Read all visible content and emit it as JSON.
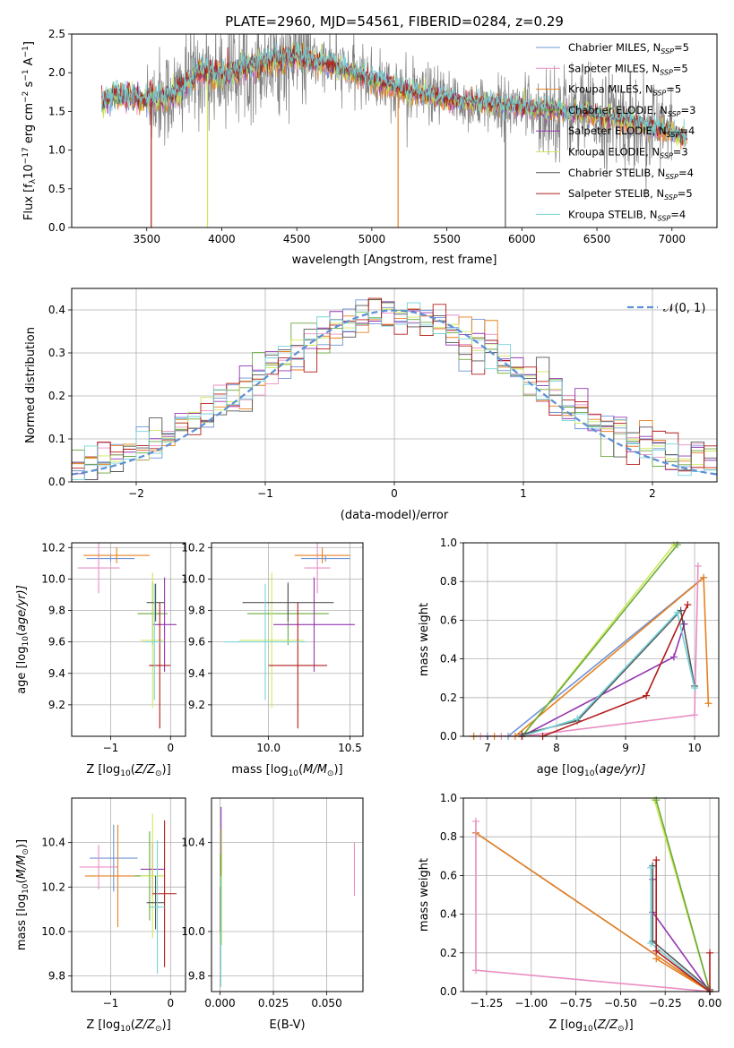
{
  "figure": {
    "title": "PLATE=2960, MJD=54561, FIBERID=0284, z=0.29"
  },
  "legend_entries": [
    {
      "id": "chab-miles",
      "base": "Chabrier MILES, N",
      "sub": "SSP",
      "suffix": "=5",
      "color": "#6f94d6"
    },
    {
      "id": "salp-miles",
      "base": "Salpeter MILES, N",
      "sub": "SSP",
      "suffix": "=5",
      "color": "#e98ec2"
    },
    {
      "id": "krou-miles",
      "base": "Kroupa MILES, N",
      "sub": "SSP",
      "suffix": "=5",
      "color": "#e7801f"
    },
    {
      "id": "chab-elodie",
      "base": "Chabrier ELODIE, N",
      "sub": "SSP",
      "suffix": "=3",
      "color": "#6aa93c"
    },
    {
      "id": "salp-elodie",
      "base": "Salpeter ELODIE, N",
      "sub": "SSP",
      "suffix": "=4",
      "color": "#9437b1"
    },
    {
      "id": "krou-elodie",
      "base": "Kroupa ELODIE, N",
      "sub": "SSP",
      "suffix": "=3",
      "color": "#cfe85a"
    },
    {
      "id": "chab-stelib",
      "base": "Chabrier STELIB, N",
      "sub": "SSP",
      "suffix": "=4",
      "color": "#555555"
    },
    {
      "id": "salp-stelib",
      "base": "Salpeter STELIB, N",
      "sub": "SSP",
      "suffix": "=5",
      "color": "#b31b1b"
    },
    {
      "id": "krou-stelib",
      "base": "Kroupa STELIB, N",
      "sub": "SSP",
      "suffix": "=4",
      "color": "#75d2d8"
    }
  ],
  "chart_data": [
    {
      "id": "spectrum",
      "type": "line",
      "xlabel": "wavelength [Angstrom, rest frame]",
      "ylabel_parts": {
        "a": "Flux [f",
        "sub1": "λ",
        "b": "10",
        "sup1": "−17",
        "c": " erg cm",
        "sup2": "−2",
        "d": " s",
        "sup3": "−1",
        "e": " A",
        "sup4": "−1",
        "f": "]"
      },
      "xlim": [
        3000,
        7300
      ],
      "ylim": [
        0,
        2.5
      ],
      "xticks": [
        3500,
        4000,
        4500,
        5000,
        5500,
        6000,
        6500,
        7000
      ],
      "yticks": [
        0.0,
        0.5,
        1.0,
        1.5,
        2.0,
        2.5
      ],
      "grid": false,
      "legend_placement": "upper right",
      "continuum_knots": [
        [
          3200,
          1.62
        ],
        [
          3300,
          1.72
        ],
        [
          3500,
          1.66
        ],
        [
          3700,
          1.72
        ],
        [
          3850,
          2.02
        ],
        [
          4000,
          1.95
        ],
        [
          4200,
          2.1
        ],
        [
          4500,
          2.2
        ],
        [
          4800,
          2.05
        ],
        [
          5000,
          1.9
        ],
        [
          5300,
          1.72
        ],
        [
          5600,
          1.62
        ],
        [
          6000,
          1.55
        ],
        [
          6300,
          1.5
        ],
        [
          6600,
          1.42
        ],
        [
          6900,
          1.28
        ],
        [
          7100,
          1.15
        ]
      ],
      "observed_range": [
        3500,
        7000
      ],
      "model_range": [
        3200,
        7100
      ],
      "dips": [
        {
          "series": "salp-stelib",
          "x": 3530,
          "y": 0.0
        },
        {
          "series": "krou-elodie",
          "x": 3905,
          "y": 0.0
        },
        {
          "series": "krou-miles",
          "x": 5175,
          "y": 0.0
        },
        {
          "series": "chab-stelib",
          "x": 5890,
          "y": 0.0
        }
      ]
    },
    {
      "id": "residuals",
      "type": "histogram",
      "xlabel": "(data-model)/error",
      "ylabel": "Normed distribution",
      "xlim": [
        -2.5,
        2.5
      ],
      "ylim": [
        0,
        0.45
      ],
      "xticks": [
        -2,
        -1,
        0,
        1,
        2
      ],
      "xtick_labels": [
        "−2",
        "−1",
        "0",
        "1",
        "2"
      ],
      "yticks": [
        0.0,
        0.1,
        0.2,
        0.3,
        0.4
      ],
      "grid": true,
      "bins": 50,
      "reference": {
        "label": "𝒩(0, 1)",
        "mean": 0,
        "sigma": 1,
        "color": "#5b8fd6",
        "dash": "dashed"
      },
      "legend_placement": "upper right"
    },
    {
      "id": "age-vs-z",
      "type": "errorbar",
      "xlabel_parts": {
        "a": "Z [log",
        "sub": "10",
        "b": "(Z/Z",
        "sub2": "⊙",
        "c": ")]"
      },
      "ylabel_parts": {
        "a": "age  [log",
        "sub": "10",
        "b": "(age/yr)]"
      },
      "xlim": [
        -1.65,
        0.25
      ],
      "ylim": [
        9.0,
        10.23
      ],
      "xticks": [
        -1,
        0
      ],
      "xtick_labels": [
        "−1",
        "0"
      ],
      "yticks": [
        9.2,
        9.4,
        9.6,
        9.8,
        10.0,
        10.2
      ],
      "grid": true,
      "points": [
        {
          "series": "chab-miles",
          "x": -1.0,
          "xerr": 0.4,
          "y": 10.13,
          "yerr": 0.02
        },
        {
          "series": "salp-miles",
          "x": -1.2,
          "xerr": 0.35,
          "y": 10.07,
          "yerr": 0.16
        },
        {
          "series": "krou-miles",
          "x": -0.9,
          "xerr": 0.55,
          "y": 10.15,
          "yerr": 0.05
        },
        {
          "series": "chab-elodie",
          "x": -0.3,
          "xerr": 0.25,
          "y": 9.78,
          "yerr": 0.2
        },
        {
          "series": "salp-elodie",
          "x": -0.1,
          "xerr": 0.2,
          "y": 9.71,
          "yerr": 0.3
        },
        {
          "series": "krou-elodie",
          "x": -0.3,
          "xerr": 0.2,
          "y": 9.61,
          "yerr": 0.43
        },
        {
          "series": "chab-stelib",
          "x": -0.25,
          "xerr": 0.15,
          "y": 9.85,
          "yerr": 0.12
        },
        {
          "series": "salp-stelib",
          "x": -0.18,
          "xerr": 0.18,
          "y": 9.45,
          "yerr": 0.4
        },
        {
          "series": "krou-stelib",
          "x": -0.27,
          "xerr": 0.15,
          "y": 9.6,
          "yerr": 0.37
        }
      ]
    },
    {
      "id": "age-vs-mass",
      "type": "errorbar",
      "xlabel_parts": {
        "a": "mass [log",
        "sub": "10",
        "b": "(M/M",
        "sub2": "⊙",
        "c": ")]"
      },
      "xlim": [
        9.65,
        10.58
      ],
      "ylim": [
        9.0,
        10.23
      ],
      "xticks": [
        10.0,
        10.5
      ],
      "xtick_labels": [
        "10.0",
        "10.5"
      ],
      "yticks": [
        9.2,
        9.4,
        9.6,
        9.8,
        10.0,
        10.2
      ],
      "grid": true,
      "points": [
        {
          "series": "chab-miles",
          "x": 10.35,
          "xerr": 0.15,
          "y": 10.13,
          "yerr": 0.02
        },
        {
          "series": "salp-miles",
          "x": 10.3,
          "xerr": 0.08,
          "y": 10.07,
          "yerr": 0.16
        },
        {
          "series": "krou-miles",
          "x": 10.33,
          "xerr": 0.17,
          "y": 10.15,
          "yerr": 0.05
        },
        {
          "series": "chab-elodie",
          "x": 10.12,
          "xerr": 0.25,
          "y": 9.78,
          "yerr": 0.2
        },
        {
          "series": "salp-elodie",
          "x": 10.28,
          "xerr": 0.25,
          "y": 9.71,
          "yerr": 0.3
        },
        {
          "series": "krou-elodie",
          "x": 10.02,
          "xerr": 0.2,
          "y": 9.61,
          "yerr": 0.43
        },
        {
          "series": "chab-stelib",
          "x": 10.12,
          "xerr": 0.28,
          "y": 9.85,
          "yerr": 0.12
        },
        {
          "series": "salp-stelib",
          "x": 10.18,
          "xerr": 0.18,
          "y": 9.45,
          "yerr": 0.4
        },
        {
          "series": "krou-stelib",
          "x": 9.98,
          "xerr": 0.25,
          "y": 9.6,
          "yerr": 0.37
        }
      ]
    },
    {
      "id": "weight-vs-age",
      "type": "line",
      "xlabel_parts": {
        "a": "age  [log",
        "sub": "10",
        "b": "(age/yr)]"
      },
      "ylabel": "mass weight",
      "xlim": [
        6.65,
        10.35
      ],
      "ylim": [
        0,
        1.0
      ],
      "xticks": [
        7,
        8,
        9,
        10
      ],
      "xtick_labels": [
        "7",
        "8",
        "9",
        "10"
      ],
      "yticks": [
        0.0,
        0.2,
        0.4,
        0.6,
        0.8,
        1.0
      ],
      "grid": true,
      "series": [
        {
          "series": "chab-miles",
          "points": [
            [
              6.8,
              0.0
            ],
            [
              7.0,
              0.0
            ],
            [
              7.3,
              0.0
            ],
            [
              10.13,
              0.82
            ]
          ]
        },
        {
          "series": "krou-miles",
          "points": [
            [
              6.8,
              0.0
            ],
            [
              7.1,
              0.0
            ],
            [
              7.4,
              0.0
            ],
            [
              10.13,
              0.82
            ],
            [
              10.2,
              0.17
            ]
          ]
        },
        {
          "series": "salp-miles",
          "points": [
            [
              6.9,
              0.0
            ],
            [
              7.2,
              0.0
            ],
            [
              7.5,
              0.0
            ],
            [
              10.0,
              0.11
            ],
            [
              10.05,
              0.88
            ]
          ]
        },
        {
          "series": "krou-elodie",
          "points": [
            [
              7.5,
              0.0
            ],
            [
              9.7,
              0.99
            ]
          ]
        },
        {
          "series": "chab-elodie",
          "points": [
            [
              7.5,
              0.0
            ],
            [
              9.75,
              0.99
            ]
          ]
        },
        {
          "series": "salp-elodie",
          "points": [
            [
              7.5,
              0.0
            ],
            [
              9.7,
              0.41
            ],
            [
              9.85,
              0.58
            ]
          ]
        },
        {
          "series": "chab-stelib",
          "points": [
            [
              7.5,
              0.01
            ],
            [
              8.3,
              0.08
            ],
            [
              9.8,
              0.65
            ],
            [
              10.0,
              0.26
            ]
          ]
        },
        {
          "series": "krou-stelib",
          "points": [
            [
              7.5,
              0.0
            ],
            [
              8.3,
              0.09
            ],
            [
              9.75,
              0.64
            ],
            [
              10.0,
              0.25
            ]
          ]
        },
        {
          "series": "salp-stelib",
          "points": [
            [
              7.5,
              0.0
            ],
            [
              7.8,
              0.0
            ],
            [
              9.3,
              0.21
            ],
            [
              9.9,
              0.68
            ]
          ]
        }
      ]
    },
    {
      "id": "mass-vs-z",
      "type": "errorbar",
      "xlabel_parts": {
        "a": "Z [log",
        "sub": "10",
        "b": "(Z/Z",
        "sub2": "⊙",
        "c": ")]"
      },
      "ylabel_parts": {
        "a": "mass [log",
        "sub": "10",
        "b": "(M/M",
        "sub2": "⊙",
        "c": ")]"
      },
      "xlim": [
        -1.65,
        0.25
      ],
      "ylim": [
        9.73,
        10.6
      ],
      "xticks": [
        -1,
        0
      ],
      "xtick_labels": [
        "−1",
        "0"
      ],
      "yticks": [
        9.8,
        10.0,
        10.2,
        10.4
      ],
      "grid": true,
      "points": [
        {
          "series": "chab-miles",
          "x": -0.95,
          "xerr": 0.4,
          "y": 10.33,
          "yerr": 0.15
        },
        {
          "series": "salp-miles",
          "x": -1.2,
          "xerr": 0.32,
          "y": 10.29,
          "yerr": 0.1
        },
        {
          "series": "krou-miles",
          "x": -0.88,
          "xerr": 0.55,
          "y": 10.25,
          "yerr": 0.23
        },
        {
          "series": "chab-elodie",
          "x": -0.35,
          "xerr": 0.25,
          "y": 10.25,
          "yerr": 0.2
        },
        {
          "series": "salp-elodie",
          "x": -0.3,
          "xerr": 0.2,
          "y": 10.28,
          "yerr": 0.12
        },
        {
          "series": "krou-elodie",
          "x": -0.3,
          "xerr": 0.2,
          "y": 10.25,
          "yerr": 0.28
        },
        {
          "series": "chab-stelib",
          "x": -0.25,
          "xerr": 0.15,
          "y": 10.13,
          "yerr": 0.12
        },
        {
          "series": "salp-stelib",
          "x": -0.1,
          "xerr": 0.2,
          "y": 10.17,
          "yerr": 0.33
        },
        {
          "series": "krou-stelib",
          "x": -0.22,
          "xerr": 0.12,
          "y": 10.11,
          "yerr": 0.3
        }
      ]
    },
    {
      "id": "mass-vs-ebv",
      "type": "errorbar",
      "xlabel": "E(B-V)",
      "xlim": [
        -0.004,
        0.067
      ],
      "ylim": [
        9.73,
        10.6
      ],
      "xticks": [
        0.0,
        0.025,
        0.05
      ],
      "xtick_labels": [
        "0.000",
        "0.025",
        "0.050"
      ],
      "yticks": [
        9.8,
        10.0,
        10.4
      ],
      "grid": true,
      "points": [
        {
          "series": "salp-elodie",
          "x": 0.0005,
          "xerr": 0,
          "y": 10.28,
          "yerr": 0.28
        },
        {
          "series": "krou-elodie",
          "x": 0.0008,
          "xerr": 0,
          "y": 10.2,
          "yerr": 0.26
        },
        {
          "series": "chab-elodie",
          "x": 0.0003,
          "xerr": 0,
          "y": 10.15,
          "yerr": 0.2
        },
        {
          "series": "chab-stelib",
          "x": 0.0002,
          "xerr": 0,
          "y": 10.1,
          "yerr": 0.1
        },
        {
          "series": "krou-stelib",
          "x": 0.0004,
          "xerr": 0,
          "y": 10.0,
          "yerr": 0.25
        },
        {
          "series": "salp-miles",
          "x": 0.063,
          "xerr": 0,
          "y": 10.28,
          "yerr": 0.12
        }
      ]
    },
    {
      "id": "weight-vs-z",
      "type": "line",
      "xlabel_parts": {
        "a": "Z [log",
        "sub": "10",
        "b": "(Z/Z",
        "sub2": "⊙",
        "c": ")]"
      },
      "ylabel": "mass weight",
      "xlim": [
        -1.38,
        0.05
      ],
      "ylim": [
        0,
        1.0
      ],
      "xticks": [
        -1.25,
        -1.0,
        -0.75,
        -0.5,
        -0.25,
        0.0
      ],
      "xtick_labels": [
        "−1.25",
        "−1.00",
        "−0.75",
        "−0.50",
        "−0.25",
        "0.00"
      ],
      "yticks": [
        0.0,
        0.2,
        0.4,
        0.6,
        0.8,
        1.0
      ],
      "grid": true,
      "series": [
        {
          "series": "chab-miles",
          "points": [
            [
              -1.31,
              0.82
            ],
            [
              0.0,
              0.0
            ]
          ]
        },
        {
          "series": "krou-miles",
          "points": [
            [
              -1.31,
              0.82
            ],
            [
              0.0,
              0.0
            ],
            [
              -0.3,
              0.17
            ]
          ]
        },
        {
          "series": "salp-miles",
          "points": [
            [
              -1.31,
              0.88
            ],
            [
              -1.31,
              0.11
            ],
            [
              0.0,
              0.0
            ]
          ]
        },
        {
          "series": "krou-elodie",
          "points": [
            [
              -0.31,
              0.99
            ],
            [
              0.0,
              0.0
            ]
          ]
        },
        {
          "series": "chab-elodie",
          "points": [
            [
              -0.3,
              0.99
            ],
            [
              0.0,
              0.0
            ]
          ]
        },
        {
          "series": "salp-elodie",
          "points": [
            [
              -0.32,
              0.58
            ],
            [
              -0.32,
              0.41
            ],
            [
              0.0,
              0.0
            ]
          ]
        },
        {
          "series": "chab-stelib",
          "points": [
            [
              -0.32,
              0.65
            ],
            [
              -0.32,
              0.26
            ],
            [
              0.0,
              0.01
            ]
          ]
        },
        {
          "series": "krou-stelib",
          "points": [
            [
              -0.33,
              0.64
            ],
            [
              -0.33,
              0.25
            ],
            [
              0.0,
              0.0
            ]
          ]
        },
        {
          "series": "salp-stelib",
          "points": [
            [
              -0.3,
              0.68
            ],
            [
              -0.3,
              0.21
            ],
            [
              0.0,
              0.0
            ],
            [
              0.0,
              0.2
            ]
          ]
        }
      ]
    }
  ]
}
